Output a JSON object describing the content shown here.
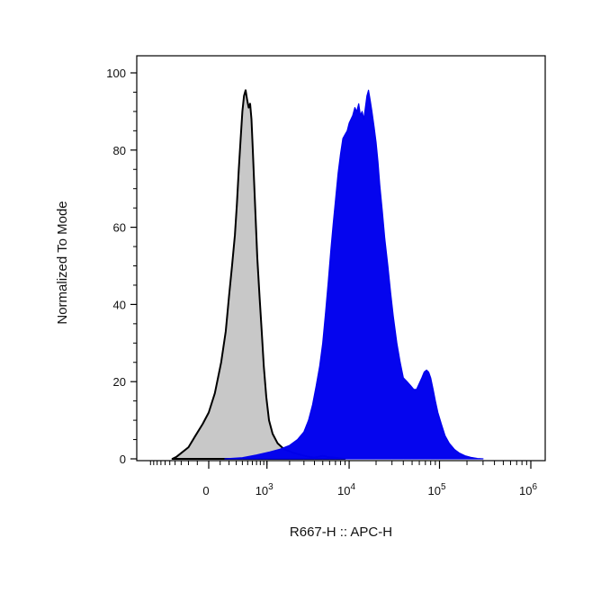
{
  "chart_data": {
    "type": "area",
    "xlabel": "R667-H :: APC-H",
    "ylabel": "Normalized To Mode",
    "x_scale": "biexponential",
    "xlim": [
      -1000,
      1000000
    ],
    "ylim": [
      0,
      100
    ],
    "y_ticks": [
      0,
      20,
      40,
      60,
      80,
      100
    ],
    "x_ticks": [
      {
        "value": 0,
        "base": "0",
        "exp": ""
      },
      {
        "value": 1000,
        "base": "10",
        "exp": "3"
      },
      {
        "value": 10000,
        "base": "10",
        "exp": "4"
      },
      {
        "value": 100000,
        "base": "10",
        "exp": "5"
      },
      {
        "value": 1000000,
        "base": "10",
        "exp": "6"
      }
    ],
    "grid": false,
    "legend": "none",
    "series": [
      {
        "fill": "#c8c8c8",
        "stroke": "#000000",
        "points": [
          [
            -450,
            0
          ],
          [
            -380,
            0.5
          ],
          [
            -300,
            1.5
          ],
          [
            -200,
            3
          ],
          [
            -120,
            6
          ],
          [
            -50,
            9
          ],
          [
            0,
            12
          ],
          [
            50,
            17
          ],
          [
            110,
            25
          ],
          [
            160,
            33
          ],
          [
            200,
            42
          ],
          [
            240,
            50
          ],
          [
            280,
            58
          ],
          [
            310,
            66
          ],
          [
            340,
            75
          ],
          [
            370,
            83
          ],
          [
            400,
            90
          ],
          [
            430,
            94
          ],
          [
            460,
            95.5
          ],
          [
            490,
            93
          ],
          [
            520,
            91
          ],
          [
            550,
            92
          ],
          [
            580,
            88
          ],
          [
            610,
            80
          ],
          [
            640,
            72
          ],
          [
            680,
            62
          ],
          [
            720,
            52
          ],
          [
            780,
            42
          ],
          [
            840,
            33
          ],
          [
            900,
            24
          ],
          [
            980,
            16
          ],
          [
            1070,
            10
          ],
          [
            1200,
            6.5
          ],
          [
            1400,
            4
          ],
          [
            1700,
            2.5
          ],
          [
            2200,
            1.6
          ],
          [
            2800,
            1
          ],
          [
            3300,
            0.6
          ],
          [
            4000,
            0.3
          ],
          [
            5000,
            0.8
          ],
          [
            6000,
            0.4
          ],
          [
            7500,
            0.2
          ],
          [
            9000,
            0
          ]
        ]
      },
      {
        "fill": "#0000ee",
        "stroke": "#0000ee",
        "points": [
          [
            150,
            0
          ],
          [
            400,
            0.3
          ],
          [
            700,
            1
          ],
          [
            1100,
            1.8
          ],
          [
            1500,
            2.5
          ],
          [
            2000,
            3.5
          ],
          [
            2500,
            5
          ],
          [
            3000,
            7
          ],
          [
            3400,
            10
          ],
          [
            3800,
            14
          ],
          [
            4200,
            19
          ],
          [
            4600,
            24
          ],
          [
            5000,
            30
          ],
          [
            5400,
            38
          ],
          [
            5800,
            46
          ],
          [
            6200,
            54
          ],
          [
            6600,
            61
          ],
          [
            7000,
            67
          ],
          [
            7500,
            74
          ],
          [
            8000,
            79
          ],
          [
            8500,
            83
          ],
          [
            9000,
            84
          ],
          [
            9500,
            85
          ],
          [
            10000,
            87
          ],
          [
            10500,
            88
          ],
          [
            11000,
            89
          ],
          [
            11600,
            91
          ],
          [
            12200,
            90
          ],
          [
            12800,
            92
          ],
          [
            13400,
            89
          ],
          [
            14000,
            90
          ],
          [
            14600,
            88
          ],
          [
            15200,
            91
          ],
          [
            15800,
            94
          ],
          [
            16500,
            95.5
          ],
          [
            17200,
            93
          ],
          [
            18000,
            90
          ],
          [
            19000,
            86
          ],
          [
            20000,
            82
          ],
          [
            21000,
            77
          ],
          [
            22000,
            71
          ],
          [
            23500,
            64
          ],
          [
            25000,
            57
          ],
          [
            27000,
            50
          ],
          [
            29000,
            43
          ],
          [
            31000,
            37
          ],
          [
            34000,
            30
          ],
          [
            37000,
            25
          ],
          [
            40000,
            21
          ],
          [
            44000,
            20
          ],
          [
            48000,
            19
          ],
          [
            52000,
            18
          ],
          [
            56000,
            18
          ],
          [
            60000,
            19.5
          ],
          [
            64000,
            21
          ],
          [
            68000,
            22.5
          ],
          [
            72000,
            23
          ],
          [
            76000,
            22.5
          ],
          [
            80000,
            21
          ],
          [
            85000,
            18
          ],
          [
            90000,
            15
          ],
          [
            96000,
            12
          ],
          [
            105000,
            9
          ],
          [
            115000,
            6
          ],
          [
            128000,
            4
          ],
          [
            145000,
            2.5
          ],
          [
            165000,
            1.5
          ],
          [
            190000,
            0.8
          ],
          [
            220000,
            0.4
          ],
          [
            260000,
            0.1
          ],
          [
            300000,
            0
          ]
        ]
      }
    ]
  }
}
